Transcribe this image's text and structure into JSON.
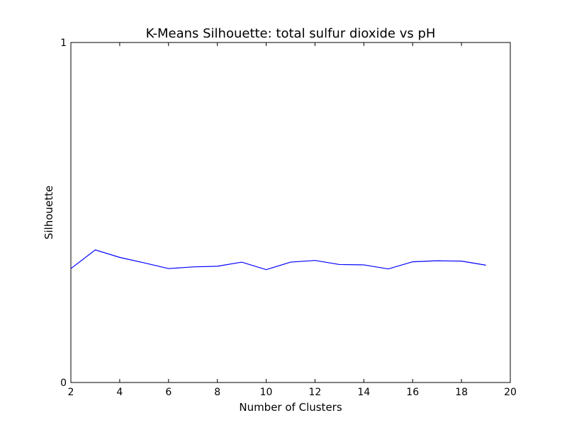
{
  "chart_data": {
    "type": "line",
    "title": "K-Means Silhouette: total sulfur dioxide vs pH",
    "xlabel": "Number of Clusters",
    "ylabel": "Silhouette",
    "xlim": [
      2,
      20
    ],
    "ylim": [
      0,
      1
    ],
    "xticks": [
      "2",
      "4",
      "6",
      "8",
      "10",
      "12",
      "14",
      "16",
      "18",
      "20"
    ],
    "yticks": [
      "0",
      "1"
    ],
    "grid": false,
    "line_color": "#0000ff",
    "series": [
      {
        "x": [
          2,
          3,
          4,
          5,
          6,
          7,
          8,
          9,
          10,
          11,
          12,
          13,
          14,
          15,
          16,
          17,
          18,
          19
        ],
        "values": [
          0.335,
          0.39,
          0.368,
          0.352,
          0.335,
          0.34,
          0.342,
          0.354,
          0.332,
          0.354,
          0.359,
          0.347,
          0.346,
          0.334,
          0.355,
          0.358,
          0.357,
          0.345
        ]
      }
    ]
  }
}
